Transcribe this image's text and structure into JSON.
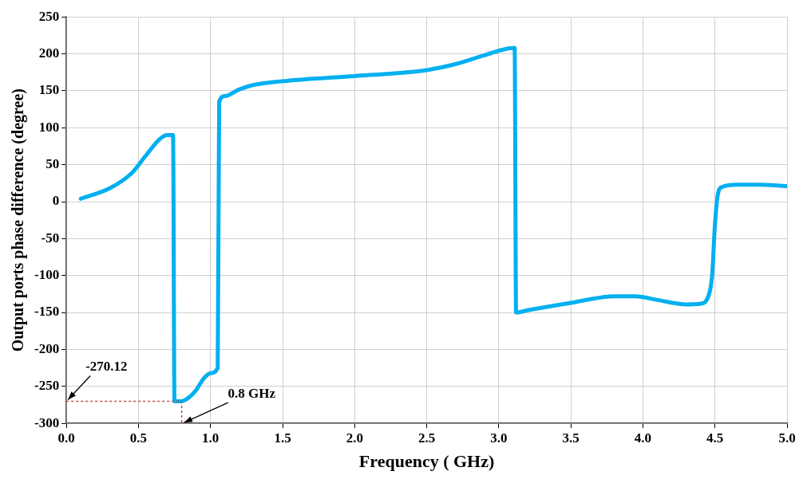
{
  "chart_data": {
    "type": "line",
    "xlabel": "Frequency ( GHz)",
    "ylabel": "Output ports phase difference (degree)",
    "xlim": [
      0,
      5
    ],
    "xticks": [
      {
        "value": 0,
        "label": "0.0"
      },
      0.5,
      {
        "value": 1,
        "label": "1.0"
      },
      1.5,
      {
        "value": 2,
        "label": "2.0"
      },
      2.5,
      {
        "value": 3,
        "label": "3.0"
      },
      3.5,
      {
        "value": 4,
        "label": "4.0"
      },
      4.5,
      {
        "value": 5,
        "label": "5.0"
      }
    ],
    "ylim": [
      -300,
      250
    ],
    "yticks": [
      -300,
      -250,
      -200,
      -150,
      -100,
      -50,
      0,
      50,
      100,
      150,
      200,
      250
    ],
    "grid": true,
    "legend": false,
    "marker": "none",
    "line_style": "solid",
    "series": [
      {
        "color": "#00b0f0",
        "x": [
          0.1,
          0.3,
          0.45,
          0.55,
          0.65,
          0.7,
          0.74,
          0.75,
          0.8,
          0.85,
          0.9,
          0.95,
          1.0,
          1.05,
          1.06,
          1.1,
          1.2,
          1.3,
          1.5,
          2.0,
          2.3,
          2.5,
          2.7,
          2.9,
          3.1,
          3.11,
          3.12,
          3.2,
          3.5,
          3.8,
          3.95,
          4.1,
          4.3,
          4.4,
          4.45,
          4.48,
          4.5,
          4.52,
          4.55,
          4.65,
          4.8,
          5.0
        ],
        "values": [
          4,
          18,
          38,
          62,
          85,
          90,
          90,
          -270,
          -270,
          -265,
          -255,
          -240,
          -232,
          -225,
          135,
          143,
          152,
          158,
          163,
          170,
          174,
          178,
          186,
          198,
          208,
          208,
          -150,
          -147,
          -137,
          -128,
          -128,
          -133,
          -139,
          -138,
          -130,
          -100,
          -30,
          10,
          20,
          23,
          23,
          21
        ]
      },
      {
        "color": "#c0504d",
        "line_style": "dotted",
        "x": [
          0,
          0.8,
          0.8
        ],
        "values": [
          -270.12,
          -270.12,
          -300
        ]
      }
    ],
    "annotations": [
      {
        "text": "-270.12",
        "x": 0,
        "y": -270.12
      },
      {
        "text": "0.8 GHz",
        "x": 0.8,
        "y": -300
      }
    ]
  }
}
